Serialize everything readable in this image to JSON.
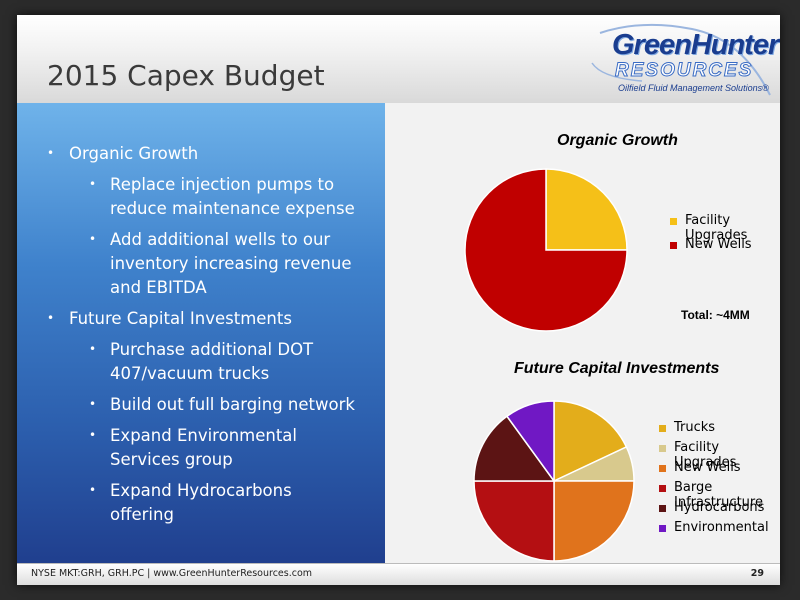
{
  "slide": {
    "title": "2015 Capex Budget",
    "logo": {
      "line1": "GreenHunter",
      "line2": "RESOURCES",
      "tagline": "Oilfield Fluid Management Solutions®"
    },
    "bullets": [
      {
        "level": 1,
        "text": "Organic Growth"
      },
      {
        "level": 2,
        "lines": [
          "Replace injection pumps to",
          "reduce maintenance expense"
        ]
      },
      {
        "level": 2,
        "lines": [
          "Add additional wells to our",
          "inventory increasing revenue",
          "and EBITDA"
        ]
      },
      {
        "level": 1,
        "text": "Future Capital Investments"
      },
      {
        "level": 2,
        "lines": [
          "Purchase additional DOT",
          "407/vacuum trucks"
        ]
      },
      {
        "level": 2,
        "lines": [
          "Build out full barging network"
        ]
      },
      {
        "level": 2,
        "lines": [
          "Expand Environmental",
          "Services group"
        ]
      },
      {
        "level": 2,
        "lines": [
          "Expand Hydrocarbons",
          "offering"
        ]
      }
    ],
    "footer": {
      "left": "NYSE MKT:GRH, GRH.PC  |  www.GreenHunterResources.com",
      "page": "29"
    }
  },
  "chart_data": [
    {
      "type": "pie",
      "title": "Organic Growth",
      "categories": [
        "Facility Upgrades",
        "New Wells"
      ],
      "values": [
        25,
        75
      ],
      "colors": [
        "#f5c018",
        "#c00000"
      ],
      "legend": "right",
      "annotation": "Total: ~4MM"
    },
    {
      "type": "pie",
      "title": "Future Capital Investments",
      "categories": [
        "Trucks",
        "Facility Upgrades",
        "New Wells",
        "Barge Infrastructure",
        "Hydrocarbons",
        "Environmental"
      ],
      "values": [
        18,
        7,
        25,
        25,
        15,
        10
      ],
      "colors": [
        "#e3ad1b",
        "#d8c98d",
        "#e0731c",
        "#b40f12",
        "#5c1414",
        "#7018c4"
      ],
      "legend": "right"
    }
  ]
}
